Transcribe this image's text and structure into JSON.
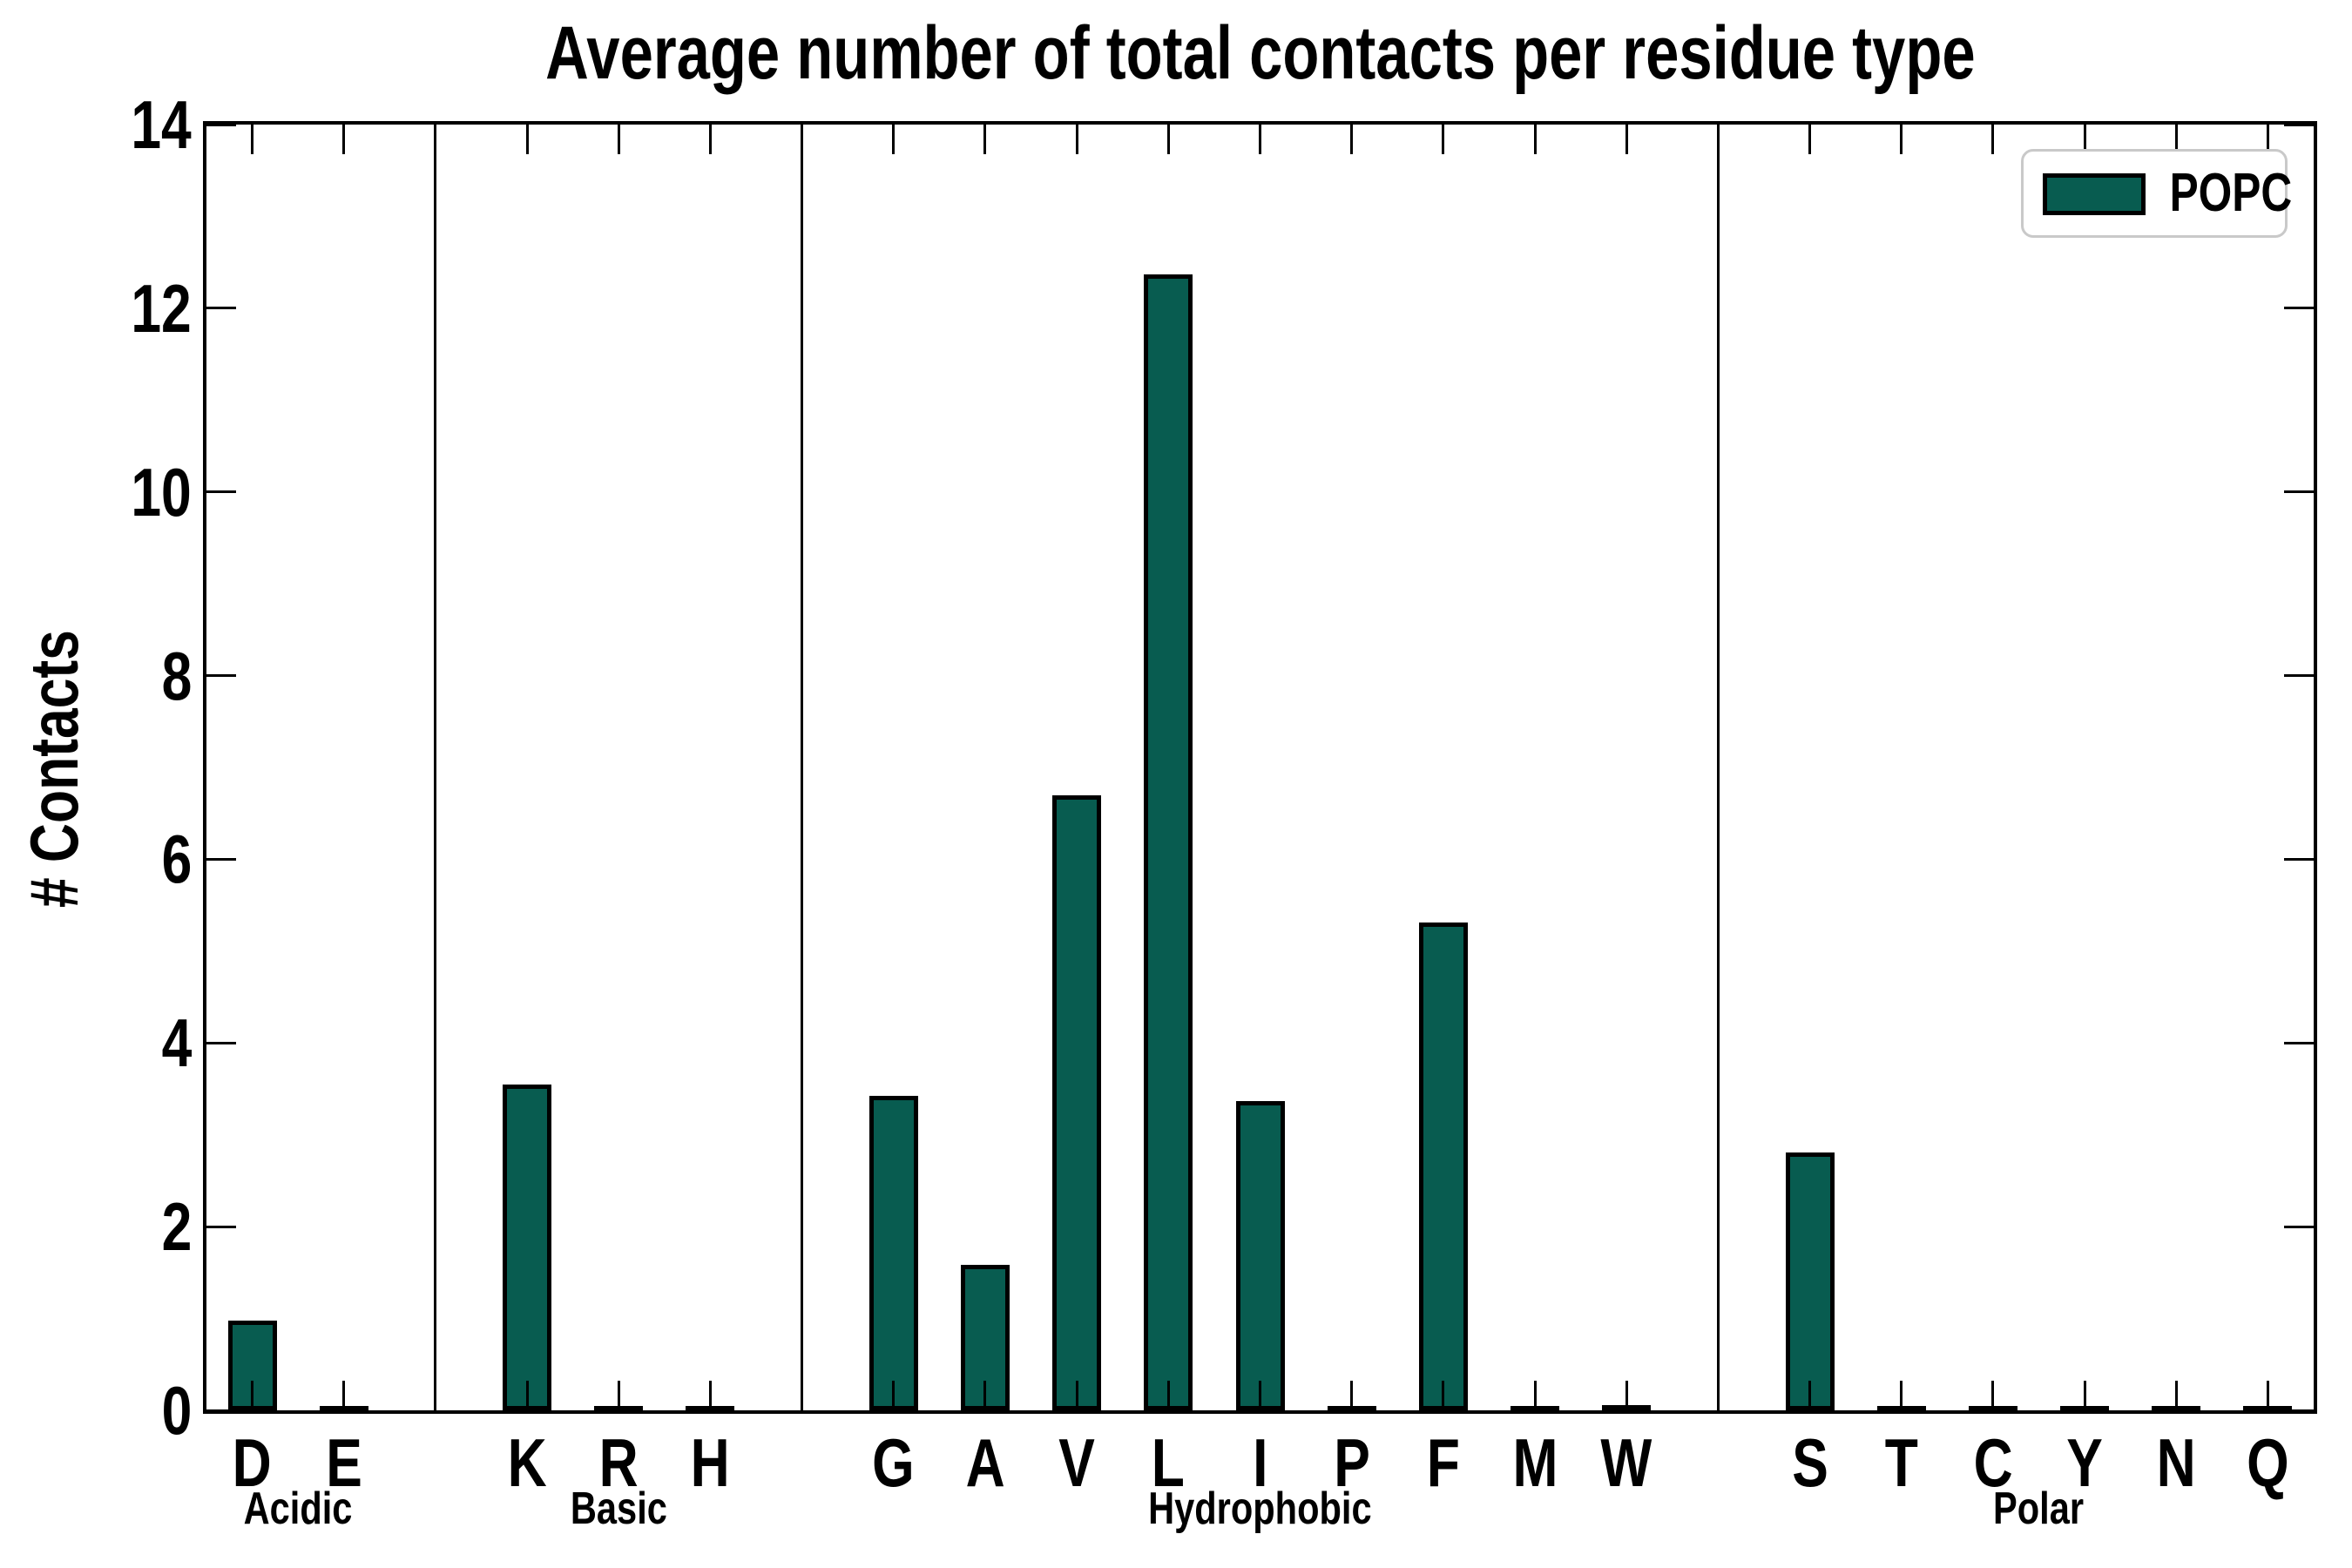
{
  "chart_data": {
    "type": "bar",
    "title": "Average number of total contacts per residue type",
    "xlabel": "",
    "ylabel": "# Contacts",
    "ylim": [
      0,
      14
    ],
    "yticks": [
      0,
      2,
      4,
      6,
      8,
      10,
      12,
      14
    ],
    "grid": false,
    "legend": {
      "label": "POPC",
      "position": "upper right"
    },
    "bar_color": "#085C50",
    "bar_edge_color": "#000000",
    "separator_color": "#000000",
    "groups": [
      {
        "name": "Acidic",
        "categories": [
          "D",
          "E"
        ],
        "values": [
          0.98,
          0.02
        ]
      },
      {
        "name": "Basic",
        "categories": [
          "K",
          "R",
          "H"
        ],
        "values": [
          3.55,
          0.02,
          0.02
        ]
      },
      {
        "name": "Hydrophobic",
        "categories": [
          "G",
          "A",
          "V",
          "L",
          "I",
          "P",
          "F",
          "M",
          "W"
        ],
        "values": [
          3.42,
          1.58,
          6.7,
          12.37,
          3.37,
          0.02,
          5.31,
          0.02,
          0.03
        ]
      },
      {
        "name": "Polar",
        "categories": [
          "S",
          "T",
          "C",
          "Y",
          "N",
          "Q"
        ],
        "values": [
          2.81,
          0.02,
          0.02,
          0.02,
          0.02,
          0.02
        ]
      }
    ]
  }
}
